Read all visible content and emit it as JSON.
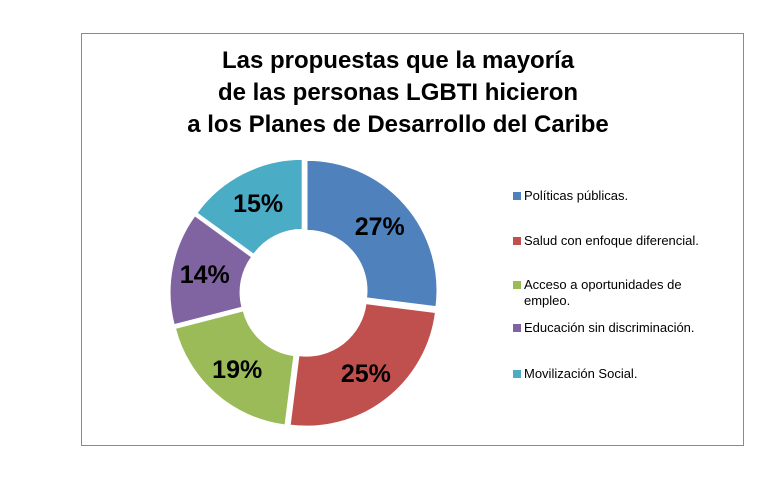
{
  "chart_data": {
    "type": "pie",
    "variant": "donut",
    "title": [
      "Las propuestas que la mayoría",
      "de las personas LGBTI hicieron",
      "a los Planes de Desarrollo del Caribe"
    ],
    "categories": [
      "Políticas públicas.",
      "Salud con enfoque diferencial.",
      "Acceso a oportunidades de empleo.",
      "Educación  sin discriminación.",
      "Movilización Social."
    ],
    "values": [
      27,
      25,
      19,
      14,
      15
    ],
    "data_labels": [
      "27%",
      "25%",
      "19%",
      "14%",
      "15%"
    ],
    "colors": [
      "#4f81bd",
      "#c0504d",
      "#9bbb59",
      "#8064a2",
      "#4bacc6"
    ],
    "legend_placement": "right"
  }
}
